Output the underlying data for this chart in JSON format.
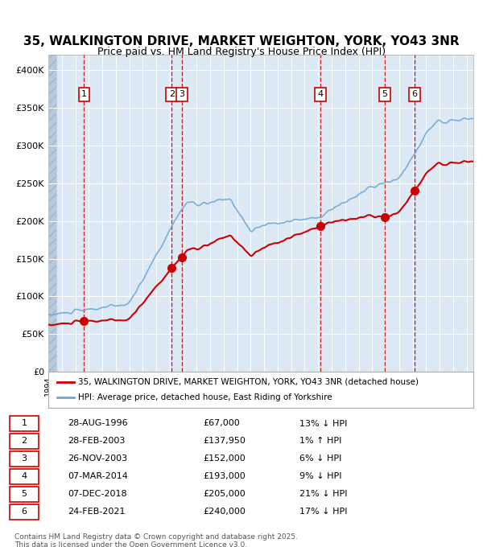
{
  "title_line1": "35, WALKINGTON DRIVE, MARKET WEIGHTON, YORK, YO43 3NR",
  "title_line2": "Price paid vs. HM Land Registry's House Price Index (HPI)",
  "ylabel_ticks": [
    "£0",
    "£50K",
    "£100K",
    "£150K",
    "£200K",
    "£250K",
    "£300K",
    "£350K",
    "£400K"
  ],
  "ytick_values": [
    0,
    50000,
    100000,
    150000,
    200000,
    250000,
    300000,
    350000,
    400000
  ],
  "ylim": [
    0,
    420000
  ],
  "xlim_start": 1994.0,
  "xlim_end": 2025.5,
  "sale_dates": [
    1996.65,
    2003.15,
    2003.9,
    2014.18,
    2018.92,
    2021.15
  ],
  "sale_prices": [
    67000,
    137950,
    152000,
    193000,
    205000,
    240000
  ],
  "sale_labels": [
    "1",
    "2",
    "3",
    "4",
    "5",
    "6"
  ],
  "vline_dates": [
    1996.65,
    2003.15,
    2003.9,
    2014.18,
    2018.92,
    2021.15
  ],
  "legend_line1": "35, WALKINGTON DRIVE, MARKET WEIGHTON, YORK, YO43 3NR (detached house)",
  "legend_line2": "HPI: Average price, detached house, East Riding of Yorkshire",
  "table_rows": [
    [
      "1",
      "28-AUG-1996",
      "£67,000",
      "13% ↓ HPI"
    ],
    [
      "2",
      "28-FEB-2003",
      "£137,950",
      "1% ↑ HPI"
    ],
    [
      "3",
      "26-NOV-2003",
      "£152,000",
      "6% ↓ HPI"
    ],
    [
      "4",
      "07-MAR-2014",
      "£193,000",
      "9% ↓ HPI"
    ],
    [
      "5",
      "07-DEC-2018",
      "£205,000",
      "21% ↓ HPI"
    ],
    [
      "6",
      "24-FEB-2021",
      "£240,000",
      "17% ↓ HPI"
    ]
  ],
  "footnote": "Contains HM Land Registry data © Crown copyright and database right 2025.\nThis data is licensed under the Open Government Licence v3.0.",
  "bg_color": "#dce9f5",
  "plot_bg_color": "#dce9f5",
  "red_line_color": "#cc0000",
  "blue_line_color": "#6fa8d4",
  "vline_color": "#cc0000",
  "grid_color": "#ffffff",
  "hatch_color": "#b0c4de"
}
